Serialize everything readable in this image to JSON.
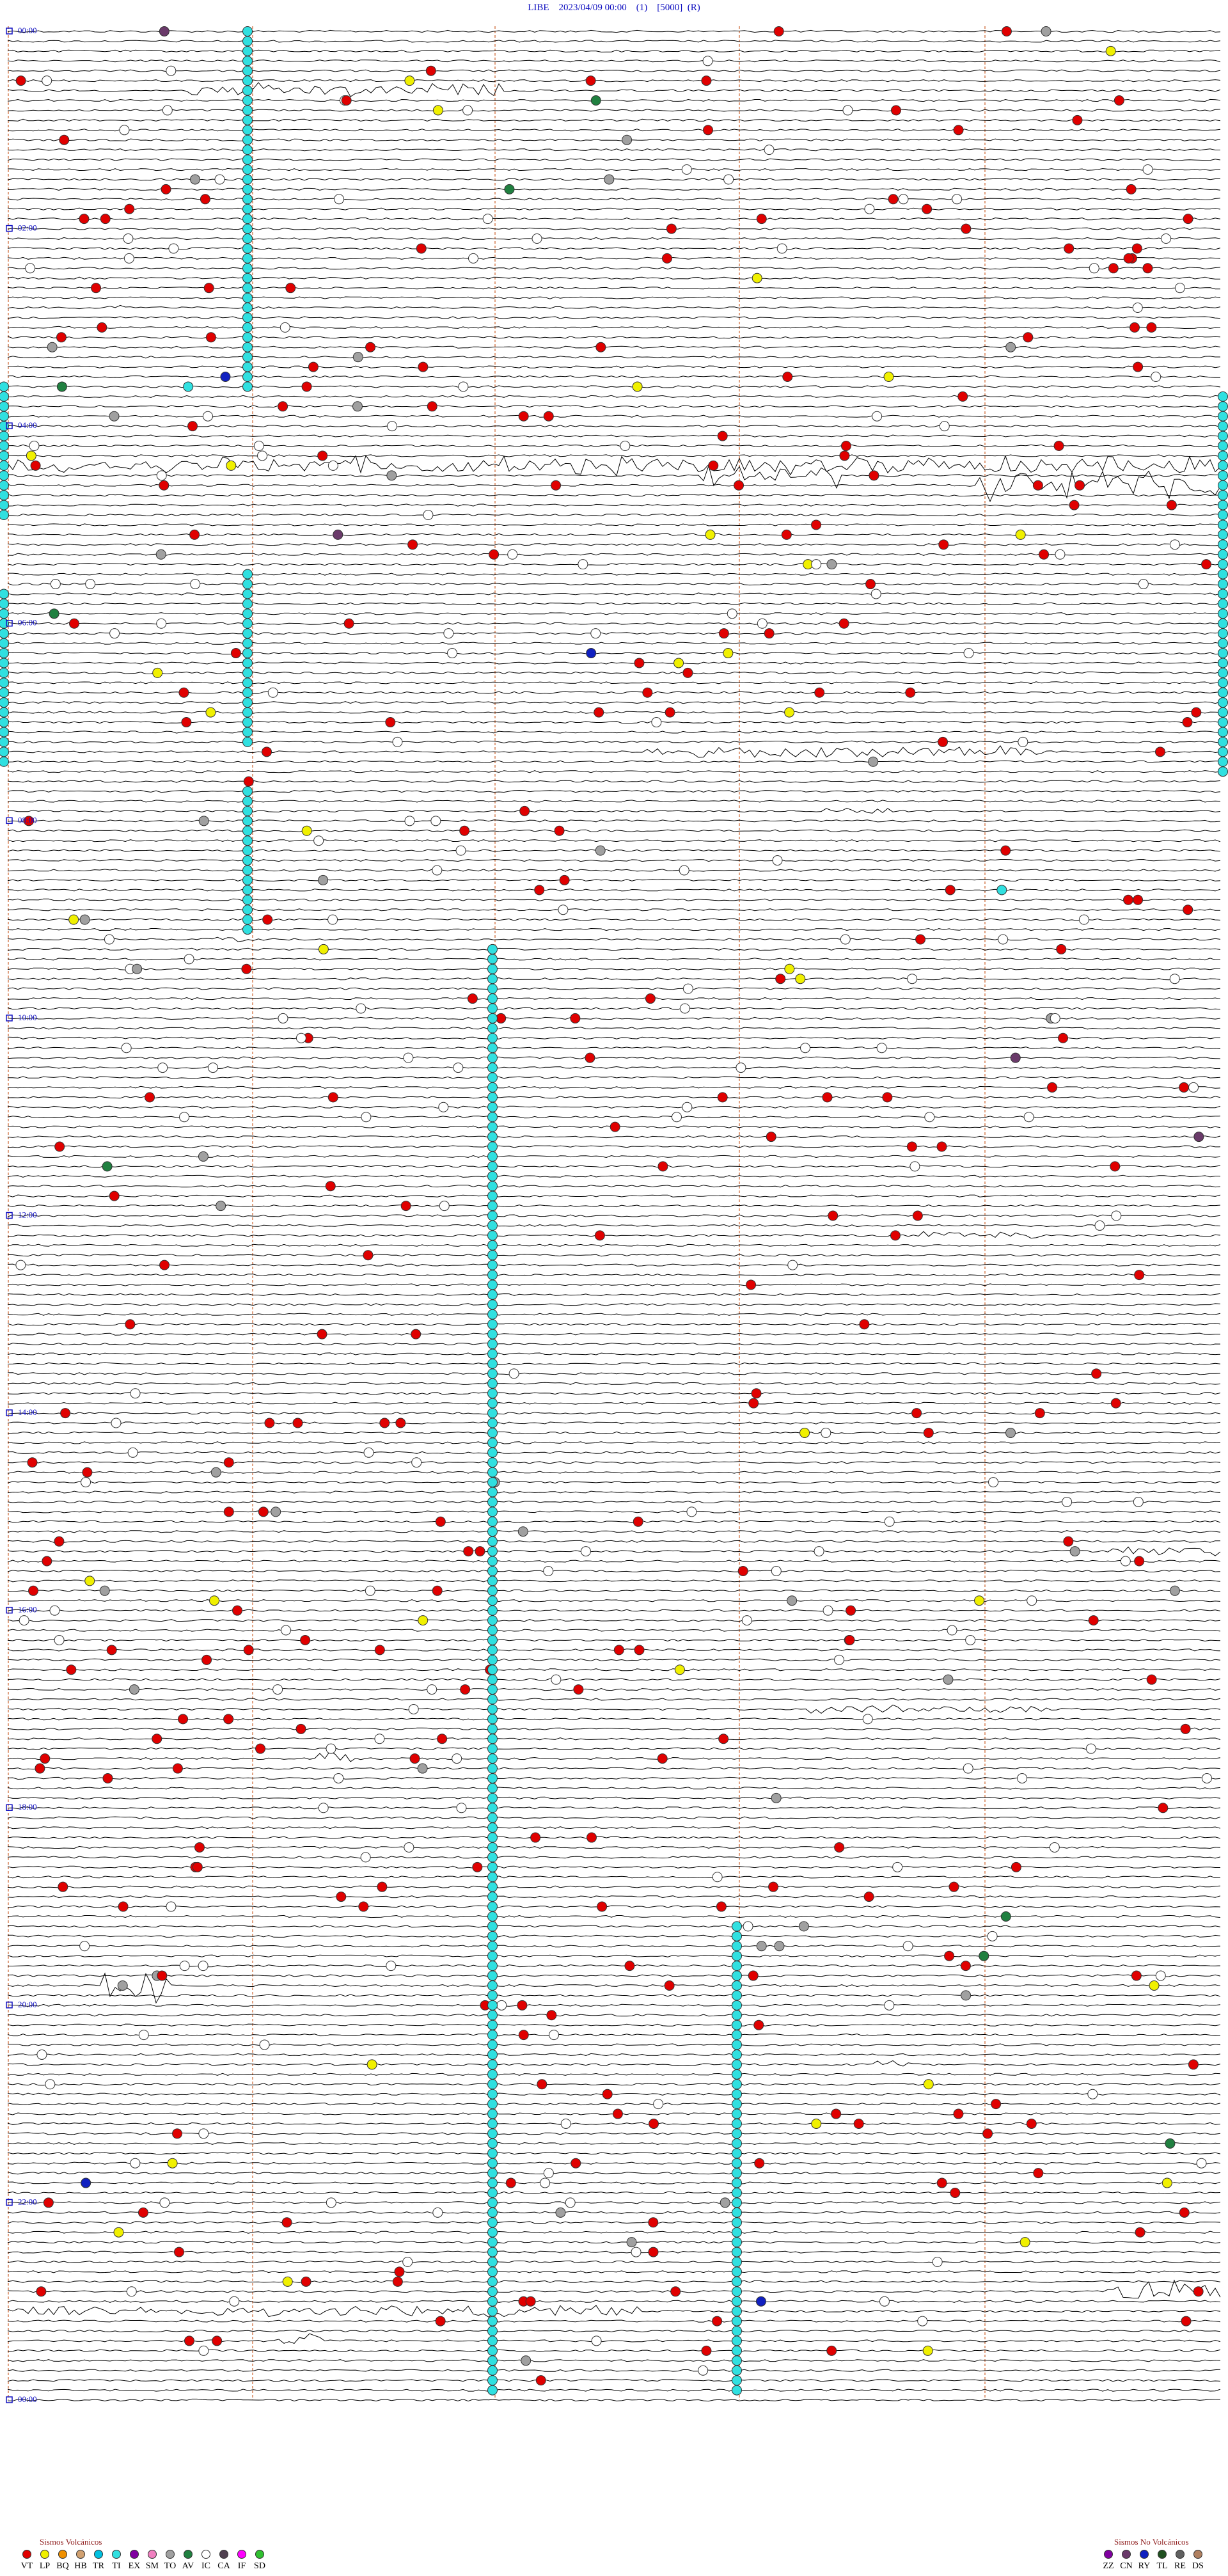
{
  "header": {
    "title": "LIBE    2023/04/09 00:00    (1)    [5000]  (R)"
  },
  "time_labels": [
    "00:00",
    "02:00",
    "04:00",
    "06:00",
    "08:00",
    "10:00",
    "12:00",
    "14:00",
    "16:00",
    "18:00",
    "20:00",
    "22:00",
    "00:00"
  ],
  "legend": {
    "volcanic": {
      "title": "Sismos Volcánicos",
      "items": [
        {
          "label": "VT",
          "color": "#e00000"
        },
        {
          "label": "LP",
          "color": "#f0f000"
        },
        {
          "label": "BQ",
          "color": "#f09000"
        },
        {
          "label": "HB",
          "color": "#d0a070"
        },
        {
          "label": "TR",
          "color": "#00c0e0"
        },
        {
          "label": "TI",
          "color": "#30e0e0"
        },
        {
          "label": "EX",
          "color": "#8000a0"
        },
        {
          "label": "SM",
          "color": "#f080c0"
        },
        {
          "label": "TO",
          "color": "#a0a0a0"
        },
        {
          "label": "AV",
          "color": "#208040"
        },
        {
          "label": "IC",
          "color": "#ffffff"
        },
        {
          "label": "CA",
          "color": "#504050"
        },
        {
          "label": "IF",
          "color": "#ff00ff"
        },
        {
          "label": "SD",
          "color": "#30c030"
        }
      ]
    },
    "non_volcanic": {
      "title": "Sismos No Volcánicos",
      "items": [
        {
          "label": "ZZ",
          "color": "#8000a0"
        },
        {
          "label": "CN",
          "color": "#6a3a6a"
        },
        {
          "label": "RY",
          "color": "#1020c0"
        },
        {
          "label": "TL",
          "color": "#205020"
        },
        {
          "label": "RE",
          "color": "#606060"
        },
        {
          "label": "DS",
          "color": "#b08060"
        }
      ]
    }
  }
}
